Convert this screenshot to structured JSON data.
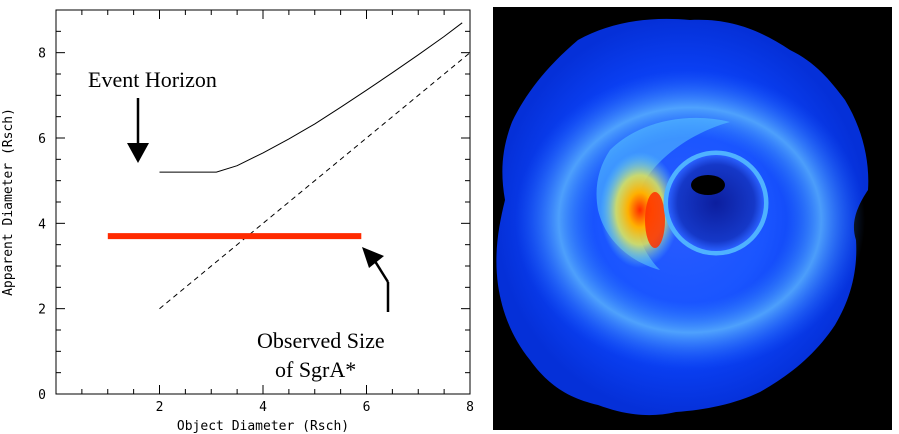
{
  "chart_data": {
    "type": "line",
    "xlabel": "Object Diameter (Rsch)",
    "ylabel": "Apparent Diameter (Rsch)",
    "xlim": [
      0,
      8
    ],
    "ylim": [
      0,
      9
    ],
    "xticks": [
      2,
      4,
      6,
      8
    ],
    "yticks": [
      0,
      2,
      4,
      6,
      8
    ],
    "series": [
      {
        "style": "solid",
        "color": "#000000",
        "x": [
          2,
          3.1,
          3.5,
          4.0,
          4.5,
          5.0,
          5.5,
          6.0,
          6.5,
          7.0,
          7.5,
          7.85
        ],
        "y": [
          5.2,
          5.2,
          5.35,
          5.65,
          5.98,
          6.33,
          6.72,
          7.12,
          7.53,
          7.95,
          8.38,
          8.7
        ]
      },
      {
        "style": "dashed",
        "color": "#000000",
        "x": [
          2,
          8
        ],
        "y": [
          2,
          8
        ]
      },
      {
        "style": "thick",
        "color": "#ff2a00",
        "x": [
          1,
          5.9
        ],
        "y": [
          3.7,
          3.7
        ]
      }
    ],
    "annotations": [
      {
        "text": "Event Horizon",
        "arrow_to": [
          2,
          5.3
        ]
      },
      {
        "text_lines": [
          "Observed Size",
          "of SgrA*"
        ],
        "arrow_to": [
          6.05,
          3.55
        ]
      }
    ]
  }
}
